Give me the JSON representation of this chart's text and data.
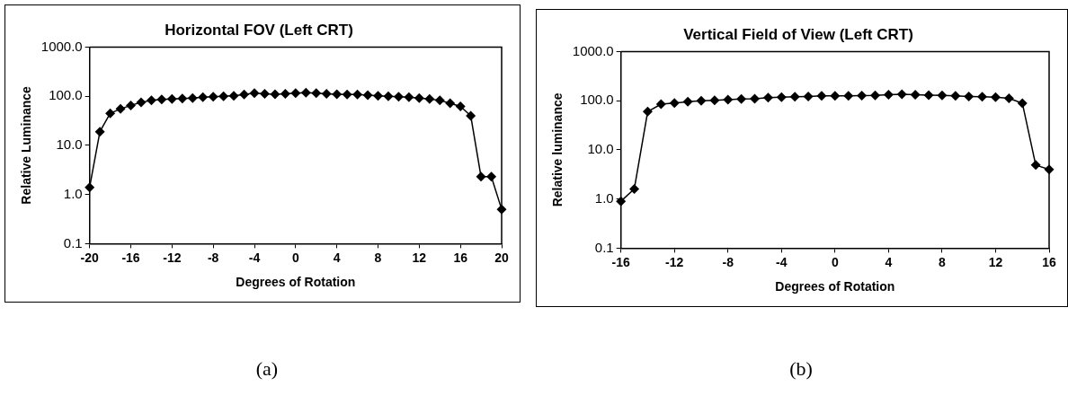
{
  "chart_data": [
    {
      "type": "line",
      "title": "Horizontal FOV (Left CRT)",
      "xlabel": "Degrees of Rotation",
      "ylabel": "Relative Luminance",
      "log": "y",
      "marker": "diamond",
      "line_style": "solid",
      "grid": false,
      "legend": false,
      "x": [
        -20,
        -19,
        -18,
        -17,
        -16,
        -15,
        -14,
        -13,
        -12,
        -11,
        -10,
        -9,
        -8,
        -7,
        -6,
        -5,
        -4,
        -3,
        -2,
        -1,
        0,
        1,
        2,
        3,
        4,
        5,
        6,
        7,
        8,
        9,
        10,
        11,
        12,
        13,
        14,
        15,
        16,
        17,
        18,
        19,
        20
      ],
      "series": [
        {
          "color": "#000000",
          "values": [
            1.4,
            19,
            45,
            55,
            65,
            75,
            82,
            86,
            88,
            90,
            92,
            95,
            97,
            100,
            102,
            108,
            115,
            112,
            110,
            112,
            115,
            118,
            115,
            112,
            110,
            108,
            108,
            105,
            102,
            100,
            98,
            95,
            92,
            88,
            82,
            72,
            62,
            40,
            2.3,
            2.3,
            0.5
          ]
        }
      ],
      "xlim": [
        -20,
        20
      ],
      "xticks": [
        -20,
        -16,
        -12,
        -8,
        -4,
        0,
        4,
        8,
        12,
        16,
        20
      ],
      "ylim": [
        0.1,
        1000
      ],
      "yticks": [
        {
          "value": 0.1,
          "label": "0.1"
        },
        {
          "value": 1,
          "label": "1.0"
        },
        {
          "value": 10,
          "label": "10.0"
        },
        {
          "value": 100,
          "label": "100.0"
        },
        {
          "value": 1000,
          "label": "1000.0"
        }
      ],
      "annotations": [
        "(a)"
      ]
    },
    {
      "type": "line",
      "title": "Vertical Field of View (Left CRT)",
      "xlabel": "Degrees of Rotation",
      "ylabel": "Relative luminance",
      "log": "y",
      "marker": "diamond",
      "line_style": "solid",
      "grid": false,
      "legend": false,
      "x": [
        -16,
        -15,
        -14,
        -13,
        -12,
        -11,
        -10,
        -9,
        -8,
        -7,
        -6,
        -5,
        -4,
        -3,
        -2,
        -1,
        0,
        1,
        2,
        3,
        4,
        5,
        6,
        7,
        8,
        9,
        10,
        11,
        12,
        13,
        14,
        15,
        16
      ],
      "series": [
        {
          "color": "#000000",
          "values": [
            0.9,
            1.6,
            60,
            85,
            90,
            95,
            100,
            102,
            105,
            108,
            110,
            115,
            118,
            120,
            122,
            125,
            125,
            125,
            127,
            128,
            132,
            135,
            132,
            130,
            128,
            125,
            122,
            120,
            118,
            112,
            89,
            4.9,
            4.0
          ]
        }
      ],
      "xlim": [
        -16,
        16
      ],
      "xticks": [
        -16,
        -12,
        -8,
        -4,
        0,
        4,
        8,
        12,
        16
      ],
      "ylim": [
        0.1,
        1000
      ],
      "yticks": [
        {
          "value": 0.1,
          "label": "0.1"
        },
        {
          "value": 1,
          "label": "1.0"
        },
        {
          "value": 10,
          "label": "10.0"
        },
        {
          "value": 100,
          "label": "100.0"
        },
        {
          "value": 1000,
          "label": "1000.0"
        }
      ],
      "annotations": [
        "(b)"
      ]
    }
  ]
}
